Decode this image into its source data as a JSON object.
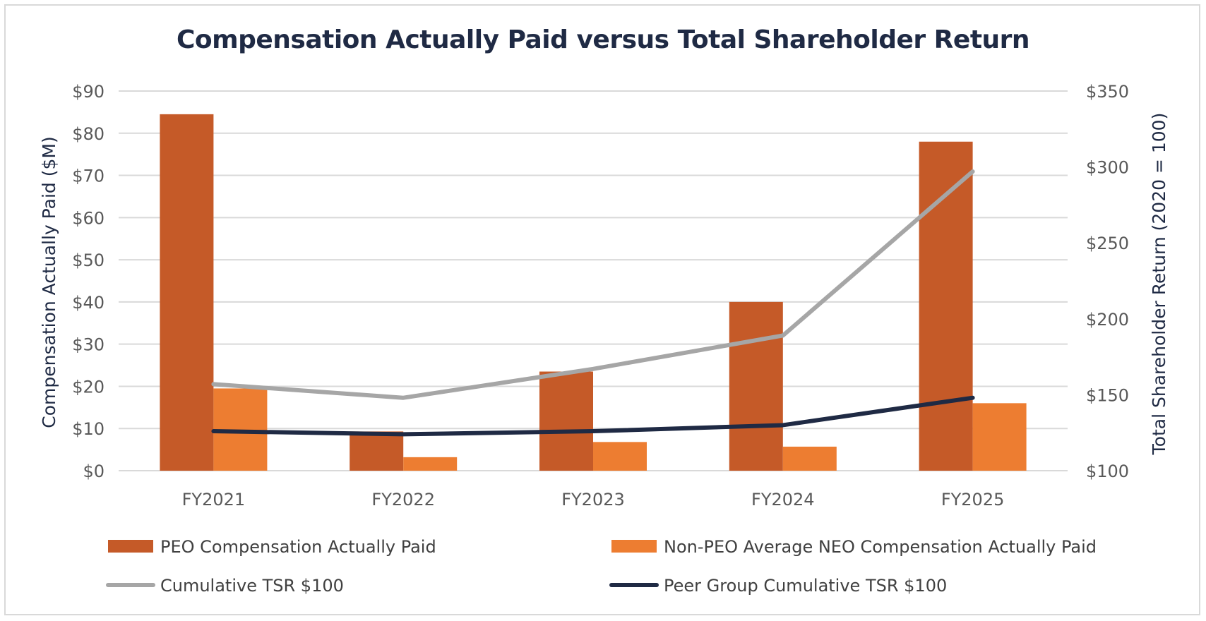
{
  "chart_data": {
    "type": "bar",
    "title": "Compensation Actually Paid versus Total Shareholder Return",
    "categories": [
      "FY2021",
      "FY2022",
      "FY2023",
      "FY2024",
      "FY2025"
    ],
    "ylabel": "Compensation Actually Paid ($M)",
    "y2label": "Total Shareholder Return (2020 = 100)",
    "ylim": [
      0,
      90
    ],
    "y2lim": [
      100,
      350
    ],
    "yticks": [
      0,
      10,
      20,
      30,
      40,
      50,
      60,
      70,
      80,
      90
    ],
    "ytick_labels": [
      "$0",
      "$10",
      "$20",
      "$30",
      "$40",
      "$50",
      "$60",
      "$70",
      "$80",
      "$90"
    ],
    "y2ticks": [
      100,
      150,
      200,
      250,
      300,
      350
    ],
    "y2tick_labels": [
      "$100",
      "$150",
      "$200",
      "$250",
      "$300",
      "$350"
    ],
    "grid": true,
    "series": [
      {
        "name": "PEO Compensation Actually Paid",
        "kind": "bar",
        "axis": "left",
        "color": "#c55a28",
        "values": [
          84.5,
          9.3,
          23.5,
          40.0,
          78.0
        ]
      },
      {
        "name": "Non-PEO Average NEO Compensation Actually Paid",
        "kind": "bar",
        "axis": "left",
        "color": "#ed7d31",
        "values": [
          19.5,
          3.2,
          6.8,
          5.7,
          16.0
        ]
      },
      {
        "name": "Cumulative TSR $100",
        "kind": "line",
        "axis": "right",
        "color": "#a6a6a6",
        "values": [
          157,
          148,
          167,
          189,
          297
        ]
      },
      {
        "name": "Peer Group Cumulative TSR $100",
        "kind": "line",
        "axis": "right",
        "color": "#1f2a44",
        "values": [
          126,
          124,
          126,
          130,
          148
        ]
      }
    ],
    "legend": "bottom"
  }
}
